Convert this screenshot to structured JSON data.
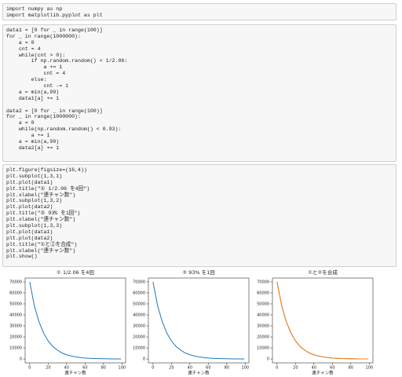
{
  "cells": [
    {
      "blocks": [
        [
          "import numpy as np",
          "import matplotlib.pyplot as plt"
        ]
      ]
    },
    {
      "blocks": [
        [
          "data1 = [0 for _ in range(100)]",
          "for _ in range(1000000):",
          "    a = 0",
          "    cnt = 4",
          "    while(cnt > 0):",
          "        if np.random.random() < 1/2.06:",
          "            a += 1",
          "            cnt = 4",
          "        else:",
          "            cnt -= 1",
          "    a = min(a,99)",
          "    data1[a] += 1"
        ],
        [
          "data2 = [0 for _ in range(100)]",
          "for _ in range(1000000):",
          "    a = 0",
          "    while(np.random.random() < 0.93):",
          "        a += 1",
          "    a = min(a,99)",
          "    data2[a] += 1"
        ]
      ]
    },
    {
      "blocks": [
        [
          "plt.figure(figsize=(16,4))",
          "plt.subplot(1,3,1)",
          "plt.plot(data1)",
          "plt.title(\"① 1/2.06 を4回\")",
          "plt.xlabel(\"連チャン数\")",
          "plt.subplot(1,3,2)",
          "plt.plot(data2)",
          "plt.title(\"② 93% を1回\")",
          "plt.xlabel(\"連チャン数\")",
          "plt.subplot(1,3,3)",
          "plt.plot(data1)",
          "plt.plot(data2)",
          "plt.title(\"①と②を合成\")",
          "plt.xlabel(\"連チャン数\")",
          "plt.show()"
        ]
      ]
    }
  ],
  "chart_data": [
    {
      "type": "line",
      "title": "① 1/2.06 を4回",
      "x_label": "連チャン数",
      "x": [
        0,
        5,
        10,
        15,
        20,
        25,
        30,
        35,
        40,
        45,
        50,
        55,
        60,
        65,
        70,
        75,
        80,
        85,
        90,
        95,
        99
      ],
      "series": [
        {
          "color": "#1f77b4",
          "values": [
            70000,
            48400,
            33900,
            23600,
            16400,
            11400,
            8000,
            5500,
            3800,
            2700,
            1900,
            1300,
            900,
            600,
            430,
            300,
            210,
            140,
            100,
            70,
            50
          ]
        }
      ],
      "xlim": [
        -5,
        104
      ],
      "xticks": [
        0,
        20,
        40,
        60,
        80,
        100
      ],
      "ylim": [
        -3500,
        73500
      ],
      "yticks": [
        0,
        10000,
        20000,
        30000,
        40000,
        50000,
        60000,
        70000
      ]
    },
    {
      "type": "line",
      "title": "② 93% を1回",
      "x_label": "連チャン数",
      "x": [
        0,
        5,
        10,
        15,
        20,
        25,
        30,
        35,
        40,
        45,
        50,
        55,
        60,
        65,
        70,
        75,
        80,
        85,
        90,
        95,
        99
      ],
      "series": [
        {
          "color": "#1f77b4",
          "values": [
            70000,
            48400,
            33900,
            23600,
            16400,
            11400,
            8000,
            5500,
            3800,
            2700,
            1900,
            1300,
            900,
            600,
            430,
            300,
            210,
            140,
            100,
            70,
            50
          ]
        }
      ],
      "xlim": [
        -5,
        104
      ],
      "xticks": [
        0,
        20,
        40,
        60,
        80,
        100
      ],
      "ylim": [
        -3500,
        73500
      ],
      "yticks": [
        0,
        10000,
        20000,
        30000,
        40000,
        50000,
        60000,
        70000
      ]
    },
    {
      "type": "line",
      "title": "①と②を合成",
      "x_label": "連チャン数",
      "x": [
        0,
        5,
        10,
        15,
        20,
        25,
        30,
        35,
        40,
        45,
        50,
        55,
        60,
        65,
        70,
        75,
        80,
        85,
        90,
        95,
        99
      ],
      "series": [
        {
          "color": "#1f77b4",
          "values": [
            70000,
            48400,
            33900,
            23600,
            16400,
            11400,
            8000,
            5500,
            3800,
            2700,
            1900,
            1300,
            900,
            600,
            430,
            300,
            210,
            140,
            100,
            70,
            50
          ]
        },
        {
          "color": "#ff7f0e",
          "values": [
            70000,
            48400,
            33900,
            23600,
            16400,
            11400,
            8000,
            5500,
            3800,
            2700,
            1900,
            1300,
            900,
            600,
            430,
            300,
            210,
            140,
            100,
            70,
            50
          ]
        }
      ],
      "xlim": [
        -5,
        104
      ],
      "xticks": [
        0,
        20,
        40,
        60,
        80,
        100
      ],
      "ylim": [
        -3500,
        73500
      ],
      "yticks": [
        0,
        10000,
        20000,
        30000,
        40000,
        50000,
        60000,
        70000
      ]
    }
  ]
}
